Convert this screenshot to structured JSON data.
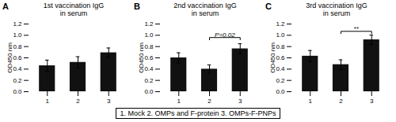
{
  "chart_data": [
    {
      "type": "bar",
      "panel_label": "A",
      "title": "1st vaccination IgG\nin serum",
      "categories": [
        "1",
        "2",
        "3"
      ],
      "values": [
        0.46,
        0.52,
        0.69
      ],
      "errors": [
        0.1,
        0.1,
        0.085
      ],
      "color": "#111111",
      "ylabel": "OD450 nm",
      "ylim": [
        0.0,
        1.2
      ],
      "yticks": [
        {
          "value": 0,
          "label": "0.0"
        },
        0.2,
        0.4,
        0.6,
        0.8,
        {
          "value": 1,
          "label": "1.0"
        },
        1.2
      ],
      "grid": false
    },
    {
      "type": "bar",
      "panel_label": "B",
      "title": "2nd vaccination IgG\nin serum",
      "categories": [
        "1",
        "2",
        "3"
      ],
      "values": [
        0.6,
        0.4,
        0.76
      ],
      "errors": [
        0.09,
        0.075,
        0.09
      ],
      "color": "#111111",
      "ylabel": "OD450 nm",
      "ylim": [
        0.0,
        1.2
      ],
      "yticks": [
        {
          "value": 0,
          "label": "0.0"
        },
        0.2,
        0.4,
        0.6,
        0.8,
        {
          "value": 1,
          "label": "1.0"
        },
        1.2
      ],
      "significance": {
        "groups": [
          "2",
          "3"
        ],
        "text": "P=0.02",
        "y": 0.96,
        "tick_h": 0.04
      },
      "grid": false
    },
    {
      "type": "bar",
      "panel_label": "C",
      "title": "3rd vaccination IgG\nin serum",
      "categories": [
        "1",
        "2",
        "3"
      ],
      "values": [
        0.63,
        0.48,
        0.92
      ],
      "errors": [
        0.1,
        0.085,
        0.085
      ],
      "color": "#111111",
      "ylabel": "OD450 nm",
      "ylim": [
        0.0,
        1.2
      ],
      "yticks": [
        {
          "value": 0,
          "label": "0.0"
        },
        0.2,
        0.4,
        0.6,
        0.8,
        {
          "value": 1,
          "label": "1.0"
        },
        1.2
      ],
      "significance": {
        "groups": [
          "2",
          "3"
        ],
        "text": "**",
        "y": 1.07,
        "tick_h": 0.04
      },
      "grid": false
    }
  ],
  "caption": "1. Mock   2. OMPs and F-protein   3. OMPs-F-PNPs"
}
